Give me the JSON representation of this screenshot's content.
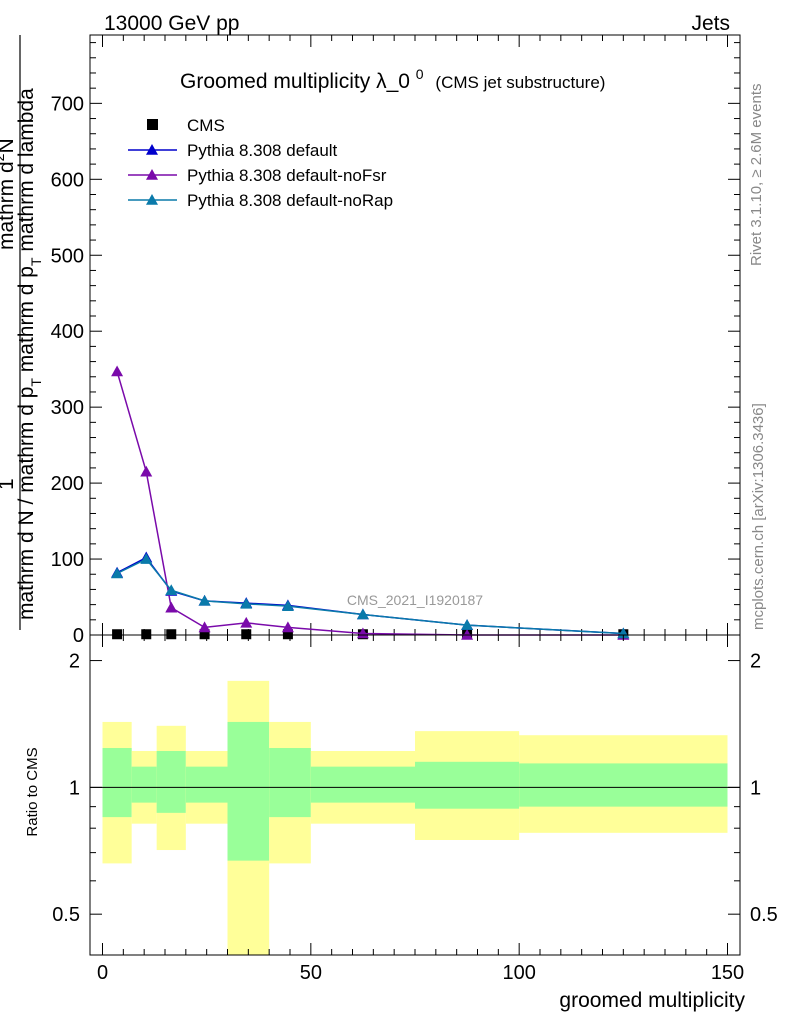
{
  "header": {
    "left": "13000 GeV pp",
    "right": "Jets"
  },
  "title": {
    "main": "Groomed multiplicity",
    "lambda": "λ_0",
    "sup": "0",
    "sub": "(CMS jet substructure)"
  },
  "side_labels": {
    "rivet": "Rivet 3.1.10, ≥ 2.6M events",
    "mcplots": "mcplots.cern.ch [arXiv:1306.3436]"
  },
  "watermark": "CMS_2021_I1920187",
  "ylabel_top": {
    "one": "1",
    "denominator": "mathrm d N / mathrm d p_T",
    "dN_num": "mathrm d²N",
    "dN_den": "mathrm d p_T mathrm d lambda",
    "combined_a": "mathrm d N / mathrm d p",
    "combined_b": "T",
    "combined_c": " mathrm d p",
    "combined_d": "T",
    "combined_e": " mathrm d lambda",
    "num_a": "mathrm d",
    "num_b": "2",
    "num_c": "N"
  },
  "ylabel_ratio": "Ratio to CMS",
  "xlabel": "groomed multiplicity",
  "legend": [
    {
      "label": "CMS",
      "color": "#000000",
      "marker": "square"
    },
    {
      "label": "Pythia 8.308 default",
      "color": "#0000cc",
      "marker": "triangle"
    },
    {
      "label": "Pythia 8.308 default-noFsr",
      "color": "#7a0aaa",
      "marker": "triangle"
    },
    {
      "label": "Pythia 8.308 default-noRap",
      "color": "#0a7aaa",
      "marker": "triangle"
    }
  ],
  "chart_data": {
    "type": "line",
    "xlim": [
      -3,
      153
    ],
    "ylim": [
      0,
      790
    ],
    "ratio_ylim": [
      0.4,
      2.3
    ],
    "ratio_scale": "log",
    "xticks": [
      0,
      50,
      100,
      150
    ],
    "yticks": [
      0,
      100,
      200,
      300,
      400,
      500,
      600,
      700
    ],
    "ratio_yticks": [
      0.5,
      1,
      2
    ],
    "x": [
      3.5,
      10.5,
      16.5,
      24.5,
      34.5,
      44.5,
      62.5,
      87.5,
      125
    ],
    "series": [
      {
        "name": "CMS",
        "color": "#000000",
        "values": [
          1,
          1,
          1,
          1,
          1,
          1,
          1,
          1,
          1
        ]
      },
      {
        "name": "Pythia 8.308 default",
        "color": "#0000cc",
        "values": [
          82,
          102,
          58,
          45,
          42,
          39,
          27,
          13,
          2
        ]
      },
      {
        "name": "Pythia 8.308 default-noFsr",
        "color": "#7a0aaa",
        "values": [
          347,
          215,
          36,
          10,
          16,
          10,
          2,
          0,
          0
        ]
      },
      {
        "name": "Pythia 8.308 default-noRap",
        "color": "#0a7aaa",
        "values": [
          81,
          100,
          59,
          45,
          41,
          38,
          27,
          13,
          2
        ]
      }
    ],
    "bins": [
      {
        "lo": 0,
        "hi": 7,
        "inner": [
          0.85,
          1.24
        ],
        "outer": [
          0.66,
          1.43
        ]
      },
      {
        "lo": 7,
        "hi": 13,
        "inner": [
          0.92,
          1.12
        ],
        "outer": [
          0.82,
          1.22
        ]
      },
      {
        "lo": 13,
        "hi": 20,
        "inner": [
          0.87,
          1.22
        ],
        "outer": [
          0.71,
          1.4
        ]
      },
      {
        "lo": 20,
        "hi": 30,
        "inner": [
          0.92,
          1.12
        ],
        "outer": [
          0.82,
          1.22
        ]
      },
      {
        "lo": 30,
        "hi": 40,
        "inner": [
          0.67,
          1.43
        ],
        "outer": [
          0.35,
          1.79
        ]
      },
      {
        "lo": 40,
        "hi": 50,
        "inner": [
          0.85,
          1.24
        ],
        "outer": [
          0.66,
          1.43
        ]
      },
      {
        "lo": 50,
        "hi": 75,
        "inner": [
          0.92,
          1.12
        ],
        "outer": [
          0.82,
          1.22
        ]
      },
      {
        "lo": 75,
        "hi": 100,
        "inner": [
          0.89,
          1.15
        ],
        "outer": [
          0.75,
          1.36
        ]
      },
      {
        "lo": 100,
        "hi": 150,
        "inner": [
          0.9,
          1.14
        ],
        "outer": [
          0.78,
          1.33
        ]
      }
    ],
    "band_colors": {
      "inner": "#99ff99",
      "outer": "#ffff99"
    }
  }
}
